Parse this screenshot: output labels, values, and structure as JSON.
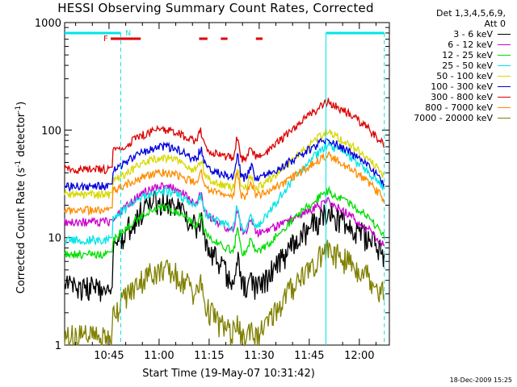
{
  "chart_data": {
    "type": "line",
    "title": "HESSI Observing Summary Count Rates, Corrected",
    "xlabel": "Start Time (19-May-07 10:31:42)",
    "ylabel_main": "Corrected Count Rate (s",
    "ylabel_sup1": "-1",
    "ylabel_mid": " detector",
    "ylabel_sup2": "-1",
    "ylabel_end": ")",
    "yscale": "log",
    "ylim": [
      1,
      1000
    ],
    "xlim_min": [
      31.7,
      129
    ],
    "ytick_labels": [
      "1",
      "10",
      "100",
      "1000"
    ],
    "xticks": [
      {
        "m": 45,
        "label": "10:45"
      },
      {
        "m": 60,
        "label": "11:00"
      },
      {
        "m": 75,
        "label": "11:15"
      },
      {
        "m": 90,
        "label": "11:30"
      },
      {
        "m": 105,
        "label": "11:45"
      },
      {
        "m": 120,
        "label": "12:00"
      }
    ],
    "legend_header": [
      "Det 1,3,4,5,6,9,",
      "Att 0"
    ],
    "series": [
      {
        "name": "3 - 6 keV",
        "color": "#000000",
        "base": 3.0,
        "pre": 3.5,
        "peak": 22,
        "mid": 3.2,
        "post": 18,
        "flare": 0
      },
      {
        "name": "6 - 12 keV",
        "color": "#cc00cc",
        "base": 14,
        "pre": 14,
        "peak": 30,
        "mid": 11,
        "post": 22,
        "flare": 0
      },
      {
        "name": "12 - 25 keV",
        "color": "#00dd00",
        "base": 7,
        "pre": 7,
        "peak": 19,
        "mid": 7,
        "post": 28,
        "flare": 0
      },
      {
        "name": "25 - 50 keV",
        "color": "#00e5e5",
        "base": 9.5,
        "pre": 9.5,
        "peak": 27,
        "mid": 12,
        "post": 75,
        "flare": 0
      },
      {
        "name": "50 - 100 keV",
        "color": "#d8d800",
        "base": 25,
        "pre": 25,
        "peak": 55,
        "mid": 28,
        "post": 100,
        "flare": 0
      },
      {
        "name": "100 - 300 keV",
        "color": "#0000dd",
        "base": 30,
        "pre": 30,
        "peak": 70,
        "mid": 35,
        "post": 85,
        "flare": 0
      },
      {
        "name": "300 - 800 keV",
        "color": "#dd0000",
        "base": 43,
        "pre": 43,
        "peak": 100,
        "mid": 53,
        "post": 190,
        "flare": 0
      },
      {
        "name": "800 - 7000 keV",
        "color": "#ff8c00",
        "base": 18,
        "pre": 18,
        "peak": 40,
        "mid": 24,
        "post": 60,
        "flare": 0
      },
      {
        "name": "7000 - 20000 keV",
        "color": "#808000",
        "base": 1.3,
        "pre": 1.2,
        "peak": 5,
        "mid": 1.1,
        "post": 8,
        "flare": 0
      }
    ],
    "flare_marker": {
      "label": "F",
      "color": "#dd0000",
      "segments": [
        [
          45.5,
          54.5
        ],
        [
          72,
          74.5
        ],
        [
          78.5,
          80.5
        ],
        [
          89,
          91
        ]
      ]
    },
    "night_marker": {
      "label": "N",
      "color": "#00e5e5",
      "segments": [
        [
          31.7,
          48.5
        ],
        [
          110,
          127.5
        ]
      ]
    },
    "saa_lines_min": [
      48.5,
      110,
      127.5
    ],
    "timestamp": "18-Dec-2009 15:25"
  }
}
